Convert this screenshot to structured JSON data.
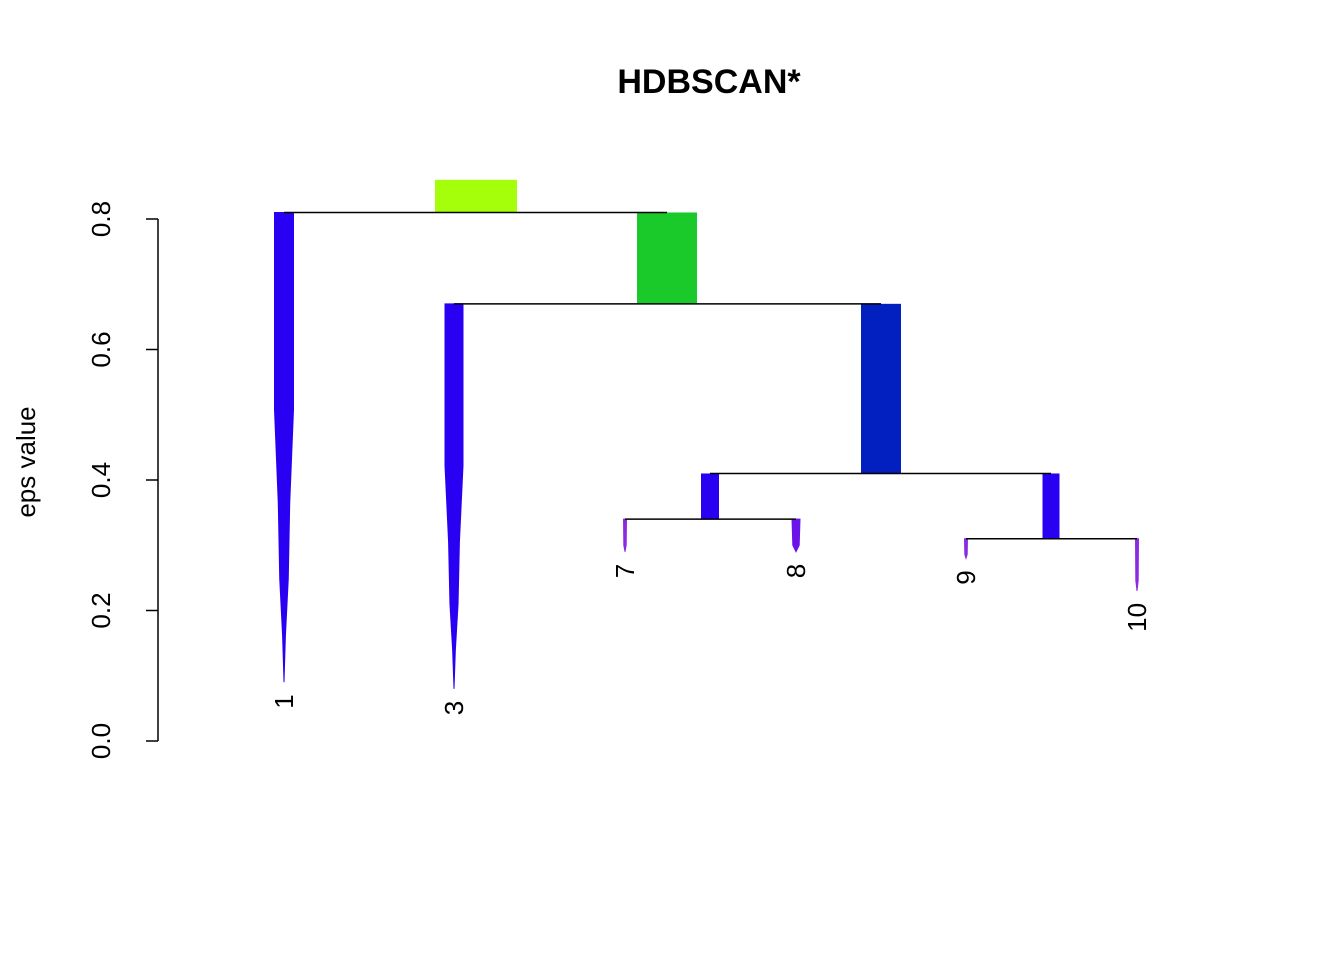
{
  "chart_data": {
    "type": "dendrogram",
    "title": "HDBSCAN*",
    "ylabel": "eps value",
    "ylim": [
      0,
      0.8
    ],
    "yticks": [
      {
        "value": 0.0,
        "label": "0.0"
      },
      {
        "value": 0.2,
        "label": "0.2"
      },
      {
        "value": 0.4,
        "label": "0.4"
      },
      {
        "value": 0.6,
        "label": "0.6"
      },
      {
        "value": 0.8,
        "label": "0.8"
      }
    ],
    "merges": [
      {
        "id": "root",
        "height": 0.81,
        "children": [
          "leaf-1",
          "node-b"
        ]
      },
      {
        "id": "node-b",
        "height": 0.67,
        "children": [
          "leaf-3",
          "node-c"
        ]
      },
      {
        "id": "node-c",
        "height": 0.41,
        "children": [
          "node-d",
          "node-e"
        ]
      },
      {
        "id": "node-d",
        "height": 0.34,
        "children": [
          "leaf-7",
          "leaf-8"
        ]
      },
      {
        "id": "node-e",
        "height": 0.31,
        "children": [
          "leaf-9",
          "leaf-10"
        ]
      }
    ],
    "clusters": [
      {
        "id": "root-stub",
        "top": 0.86,
        "bottom": 0.81,
        "color": "#a6ff0a"
      },
      {
        "id": "node-b-stem",
        "top": 0.81,
        "bottom": 0.67,
        "color": "#1ac92a"
      },
      {
        "id": "node-c-stem",
        "top": 0.67,
        "bottom": 0.41,
        "color": "#021fbf"
      },
      {
        "id": "node-d-stem",
        "top": 0.41,
        "bottom": 0.34,
        "color": "#2a00f2"
      },
      {
        "id": "node-e-stem",
        "top": 0.41,
        "bottom": 0.31,
        "color": "#2a00f2"
      }
    ],
    "leaves": [
      {
        "label": "1",
        "top": 0.81,
        "bottom": 0.09,
        "color": "#2a00f2"
      },
      {
        "label": "3",
        "top": 0.67,
        "bottom": 0.08,
        "color": "#2a00f2"
      },
      {
        "label": "7",
        "top": 0.34,
        "bottom": 0.29,
        "color": "#8a2be2"
      },
      {
        "label": "8",
        "top": 0.34,
        "bottom": 0.29,
        "color": "#6a14ea"
      },
      {
        "label": "9",
        "top": 0.31,
        "bottom": 0.28,
        "color": "#8a2be2"
      },
      {
        "label": "10",
        "top": 0.31,
        "bottom": 0.23,
        "color": "#8a2be2"
      }
    ]
  }
}
